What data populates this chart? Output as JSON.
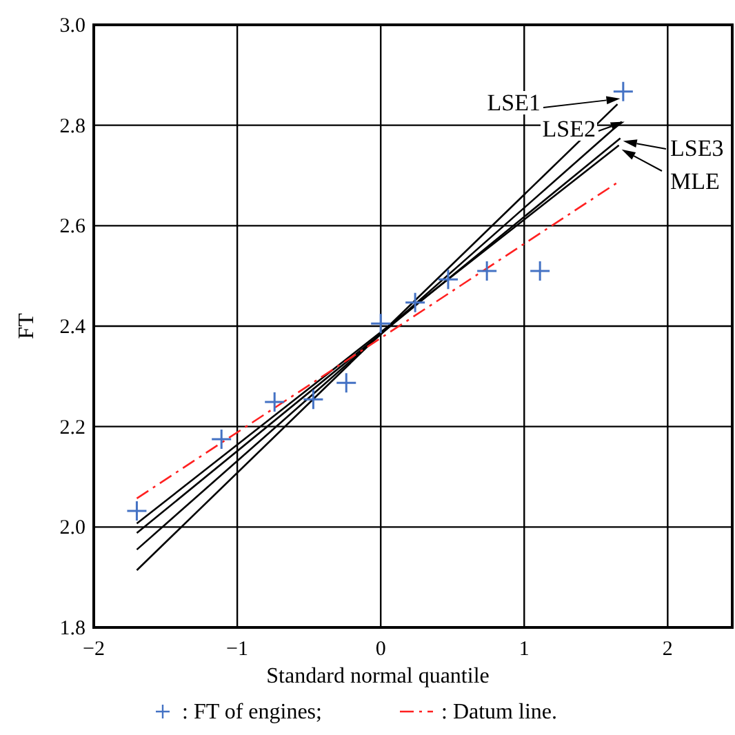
{
  "chart_data": {
    "type": "line",
    "xlabel": "Standard normal quantile",
    "ylabel": "FT",
    "xlim": [
      -2,
      2.45
    ],
    "ylim": [
      1.8,
      3.0
    ],
    "xticks": [
      {
        "value": -2,
        "label": "−2"
      },
      {
        "value": -1,
        "label": "−1"
      },
      0,
      1,
      2
    ],
    "yticks": [
      1.8,
      {
        "value": 2,
        "label": "2.0"
      },
      2.2,
      2.4,
      2.6,
      2.8,
      {
        "value": 3,
        "label": "3.0"
      }
    ],
    "grid": true,
    "legend": "bottom",
    "series": [
      {
        "name": "LSE1",
        "color": "#000000",
        "x": [
          -1.7,
          1.65
        ],
        "values": [
          1.914,
          2.842
        ]
      },
      {
        "name": "LSE2",
        "color": "#000000",
        "x": [
          -1.7,
          1.68
        ],
        "values": [
          1.955,
          2.807
        ]
      },
      {
        "name": "LSE3",
        "color": "#000000",
        "x": [
          -1.7,
          1.67
        ],
        "values": [
          1.988,
          2.774
        ]
      },
      {
        "name": "MLE",
        "color": "#000000",
        "x": [
          -1.7,
          1.66
        ],
        "values": [
          2.007,
          2.76
        ]
      },
      {
        "name": ": Datum line.",
        "color": "#ff2020",
        "line_style": "dashed",
        "x": [
          -1.7,
          1.65
        ],
        "values": [
          2.057,
          2.686
        ]
      },
      {
        "name": ": FT of engines;",
        "type": "scatter",
        "marker": "cross",
        "color": "#4472c4",
        "x": [
          -1.7,
          -1.11,
          -0.74,
          -0.47,
          -0.24,
          0,
          0.24,
          0.47,
          0.74,
          1.11,
          1.69
        ],
        "values": [
          2.032,
          2.175,
          2.249,
          2.254,
          2.287,
          2.405,
          2.447,
          2.493,
          2.51,
          2.51,
          2.867
        ]
      }
    ]
  }
}
